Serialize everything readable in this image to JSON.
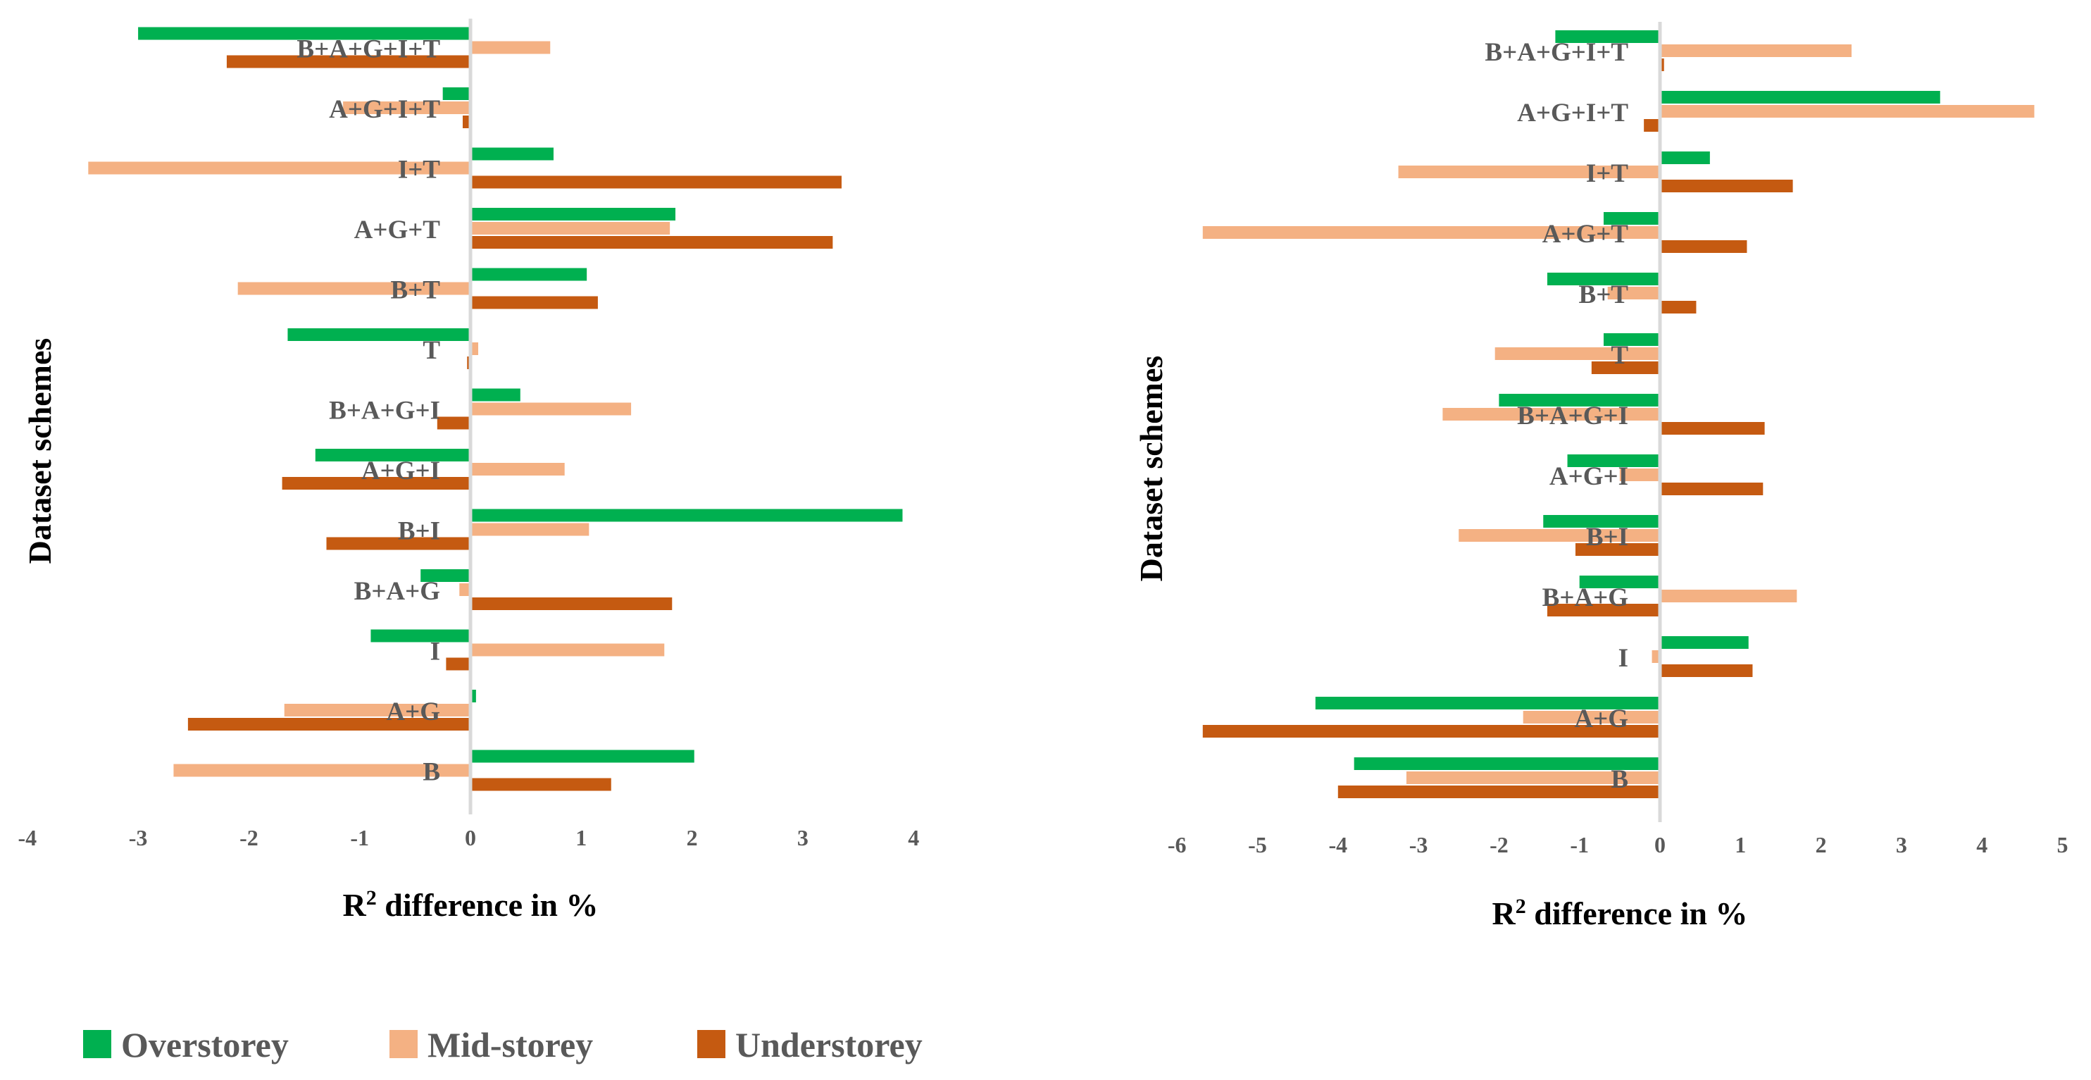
{
  "colors": {
    "overstorey": "#00B050",
    "midstorey": "#F4B183",
    "understorey": "#C55A11",
    "axis_line": "#D9D9D9"
  },
  "legend": [
    {
      "name": "Overstorey",
      "color": "#00B050"
    },
    {
      "name": "Mid-storey",
      "color": "#F4B183"
    },
    {
      "name": "Understorey",
      "color": "#C55A11"
    }
  ],
  "chart_data": [
    {
      "type": "bar",
      "orientation": "horizontal",
      "xlabel": "R",
      "xlabel_sup": "2",
      "xlabel_rest": " difference in %",
      "ylabel": "Dataset schemes",
      "xlim": [
        -4,
        4
      ],
      "xticks": [
        "-4",
        "-3",
        "-2",
        "-1",
        "0",
        "1",
        "2",
        "3",
        "4"
      ],
      "categories": [
        "B+A+G+I+T",
        "A+G+I+T",
        "I+T",
        "A+G+T",
        "B+T",
        "T",
        "B+A+G+I",
        "A+G+I",
        "B+I",
        "B+A+G",
        "I",
        "A+G",
        "B"
      ],
      "series": [
        {
          "name": "Overstorey",
          "values": [
            -3.0,
            -0.25,
            0.75,
            1.85,
            1.05,
            -1.65,
            0.45,
            -1.4,
            3.9,
            -0.45,
            -0.9,
            0.05,
            2.02
          ]
        },
        {
          "name": "Mid-storey",
          "values": [
            0.72,
            -1.15,
            -3.45,
            1.8,
            -2.1,
            0.07,
            1.45,
            0.85,
            1.07,
            -0.1,
            1.75,
            -1.68,
            -2.68
          ]
        },
        {
          "name": "Understorey",
          "values": [
            -2.2,
            -0.07,
            3.35,
            3.27,
            1.15,
            -0.03,
            -0.3,
            -1.7,
            -1.3,
            1.82,
            -0.22,
            -2.55,
            1.27
          ]
        }
      ]
    },
    {
      "type": "bar",
      "orientation": "horizontal",
      "xlabel": "R",
      "xlabel_sup": "2",
      "xlabel_rest": " difference in %",
      "ylabel": "Dataset schemes",
      "xlim": [
        -6,
        5
      ],
      "xticks": [
        "-6",
        "-5",
        "-4",
        "-3",
        "-2",
        "-1",
        "0",
        "1",
        "2",
        "3",
        "4",
        "5"
      ],
      "categories": [
        "B+A+G+I+T",
        "A+G+I+T",
        "I+T",
        "A+G+T",
        "B+T",
        "T",
        "B+A+G+I",
        "A+G+I",
        "B+I",
        "B+A+G",
        "I",
        "A+G",
        "B"
      ],
      "series": [
        {
          "name": "Overstorey",
          "values": [
            -1.3,
            3.48,
            0.62,
            -0.7,
            -1.4,
            -0.7,
            -2.0,
            -1.15,
            -1.45,
            -1.0,
            1.1,
            -4.28,
            -3.8
          ]
        },
        {
          "name": "Mid-storey",
          "values": [
            2.38,
            4.65,
            -3.25,
            -5.68,
            -0.65,
            -2.05,
            -2.7,
            -0.5,
            -2.5,
            1.7,
            -0.1,
            -1.7,
            -3.15
          ]
        },
        {
          "name": "Understorey",
          "values": [
            0.05,
            -0.2,
            1.65,
            1.08,
            0.45,
            -0.85,
            1.3,
            1.28,
            -1.05,
            -1.4,
            1.15,
            -5.68,
            -4.0
          ]
        }
      ]
    }
  ]
}
